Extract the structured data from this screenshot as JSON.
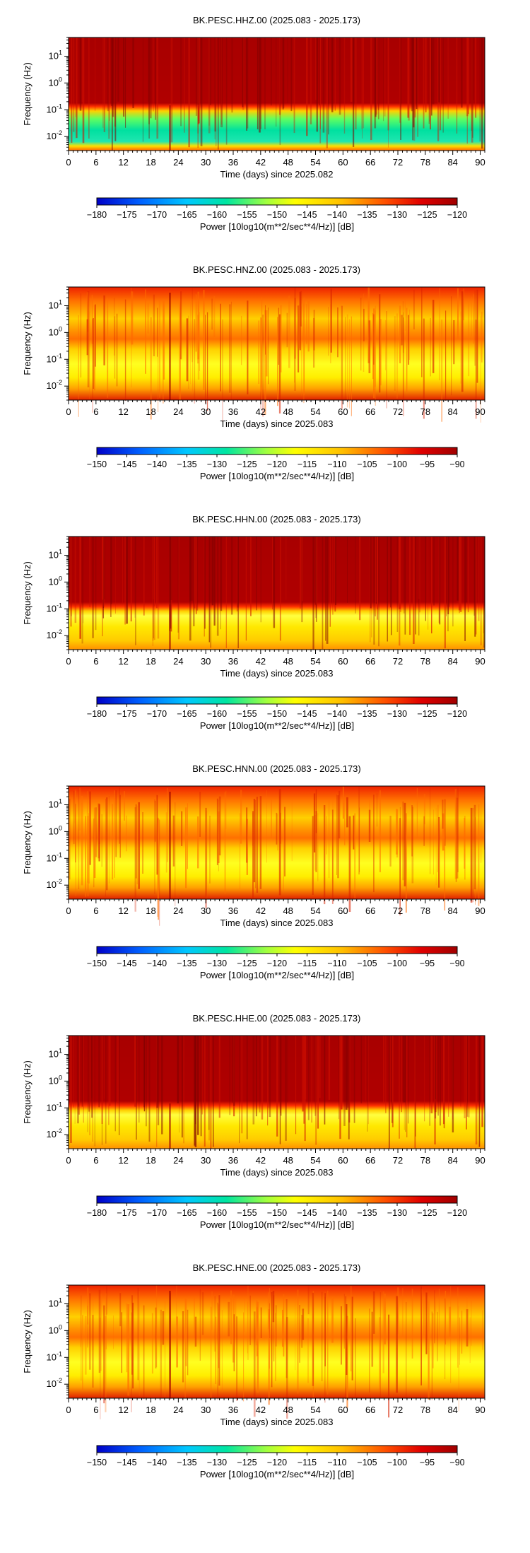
{
  "chart_data": [
    {
      "type": "heatmap",
      "title": "BK.PESC.HHZ.00 (2025.083 - 2025.173)",
      "xlabel": "Time (days) since 2025.082",
      "ylabel": "Frequency (Hz)",
      "xlim": [
        0,
        91
      ],
      "x_ticks": [
        "0",
        "6",
        "12",
        "18",
        "24",
        "30",
        "36",
        "42",
        "48",
        "54",
        "60",
        "66",
        "72",
        "78",
        "84",
        "90"
      ],
      "y_scale": "log",
      "y_ticks": [
        "10^-2",
        "10^-1",
        "10^0",
        "10^1"
      ],
      "ylim": [
        0.003,
        50
      ],
      "colorbar": {
        "label": "Power [10log10(m**2/sec**4/Hz)] [dB]",
        "range": [
          -180,
          -120
        ],
        "ticks": [
          "−180",
          "−175",
          "−170",
          "−165",
          "−160",
          "−155",
          "−150",
          "−145",
          "−140",
          "−135",
          "−130",
          "−125",
          "−120"
        ]
      },
      "colors": [
        "#0000cc",
        "#00c0ff",
        "#00e0a0",
        "#e0ff40",
        "#ffff00",
        "#ffc000",
        "#ff6000",
        "#e00000",
        "#aa0000"
      ]
    },
    {
      "type": "heatmap",
      "title": "BK.PESC.HNZ.00 (2025.083 - 2025.173)",
      "xlabel": "Time (days) since 2025.083",
      "ylabel": "Frequency (Hz)",
      "xlim": [
        0,
        91
      ],
      "x_ticks": [
        "0",
        "6",
        "12",
        "18",
        "24",
        "30",
        "36",
        "42",
        "48",
        "54",
        "60",
        "66",
        "72",
        "78",
        "84",
        "90"
      ],
      "y_scale": "log",
      "y_ticks": [
        "10^-2",
        "10^-1",
        "10^0",
        "10^1"
      ],
      "ylim": [
        0.003,
        50
      ],
      "colorbar": {
        "label": "Power [10log10(m**2/sec**4/Hz)] [dB]",
        "range": [
          -150,
          -90
        ],
        "ticks": [
          "−150",
          "−145",
          "−140",
          "−135",
          "−130",
          "−125",
          "−120",
          "−115",
          "−110",
          "−105",
          "−100",
          "−95",
          "−90"
        ]
      }
    },
    {
      "type": "heatmap",
      "title": "BK.PESC.HHN.00 (2025.083 - 2025.173)",
      "xlabel": "Time (days) since 2025.083",
      "ylabel": "Frequency (Hz)",
      "xlim": [
        0,
        91
      ],
      "x_ticks": [
        "0",
        "6",
        "12",
        "18",
        "24",
        "30",
        "36",
        "42",
        "48",
        "54",
        "60",
        "66",
        "72",
        "78",
        "84",
        "90"
      ],
      "y_scale": "log",
      "y_ticks": [
        "10^-2",
        "10^-1",
        "10^0",
        "10^1"
      ],
      "ylim": [
        0.003,
        50
      ],
      "colorbar": {
        "label": "Power [10log10(m**2/sec**4/Hz)] [dB]",
        "range": [
          -180,
          -120
        ],
        "ticks": [
          "−180",
          "−175",
          "−170",
          "−165",
          "−160",
          "−155",
          "−150",
          "−145",
          "−140",
          "−135",
          "−130",
          "−125",
          "−120"
        ]
      }
    },
    {
      "type": "heatmap",
      "title": "BK.PESC.HNN.00 (2025.083 - 2025.173)",
      "xlabel": "Time (days) since 2025.083",
      "ylabel": "Frequency (Hz)",
      "xlim": [
        0,
        91
      ],
      "x_ticks": [
        "0",
        "6",
        "12",
        "18",
        "24",
        "30",
        "36",
        "42",
        "48",
        "54",
        "60",
        "66",
        "72",
        "78",
        "84",
        "90"
      ],
      "y_scale": "log",
      "y_ticks": [
        "10^-2",
        "10^-1",
        "10^0",
        "10^1"
      ],
      "ylim": [
        0.003,
        50
      ],
      "colorbar": {
        "label": "Power [10log10(m**2/sec**4/Hz)] [dB]",
        "range": [
          -150,
          -90
        ],
        "ticks": [
          "−150",
          "−145",
          "−140",
          "−135",
          "−130",
          "−125",
          "−120",
          "−115",
          "−110",
          "−105",
          "−100",
          "−95",
          "−90"
        ]
      }
    },
    {
      "type": "heatmap",
      "title": "BK.PESC.HHE.00 (2025.083 - 2025.173)",
      "xlabel": "Time (days) since 2025.083",
      "ylabel": "Frequency (Hz)",
      "xlim": [
        0,
        91
      ],
      "x_ticks": [
        "0",
        "6",
        "12",
        "18",
        "24",
        "30",
        "36",
        "42",
        "48",
        "54",
        "60",
        "66",
        "72",
        "78",
        "84",
        "90"
      ],
      "y_scale": "log",
      "y_ticks": [
        "10^-2",
        "10^-1",
        "10^0",
        "10^1"
      ],
      "ylim": [
        0.003,
        50
      ],
      "colorbar": {
        "label": "Power [10log10(m**2/sec**4/Hz)] [dB]",
        "range": [
          -180,
          -120
        ],
        "ticks": [
          "−180",
          "−175",
          "−170",
          "−165",
          "−160",
          "−155",
          "−150",
          "−145",
          "−140",
          "−135",
          "−130",
          "−125",
          "−120"
        ]
      }
    },
    {
      "type": "heatmap",
      "title": "BK.PESC.HNE.00 (2025.083 - 2025.173)",
      "xlabel": "Time (days) since 2025.083",
      "ylabel": "Frequency (Hz)",
      "xlim": [
        0,
        91
      ],
      "x_ticks": [
        "0",
        "6",
        "12",
        "18",
        "24",
        "30",
        "36",
        "42",
        "48",
        "54",
        "60",
        "66",
        "72",
        "78",
        "84",
        "90"
      ],
      "y_scale": "log",
      "y_ticks": [
        "10^-2",
        "10^-1",
        "10^0",
        "10^1"
      ],
      "ylim": [
        0.003,
        50
      ],
      "colorbar": {
        "label": "Power [10log10(m**2/sec**4/Hz)] [dB]",
        "range": [
          -150,
          -90
        ],
        "ticks": [
          "−150",
          "−145",
          "−140",
          "−135",
          "−130",
          "−125",
          "−120",
          "−115",
          "−110",
          "−105",
          "−100",
          "−95",
          "−90"
        ]
      }
    }
  ]
}
